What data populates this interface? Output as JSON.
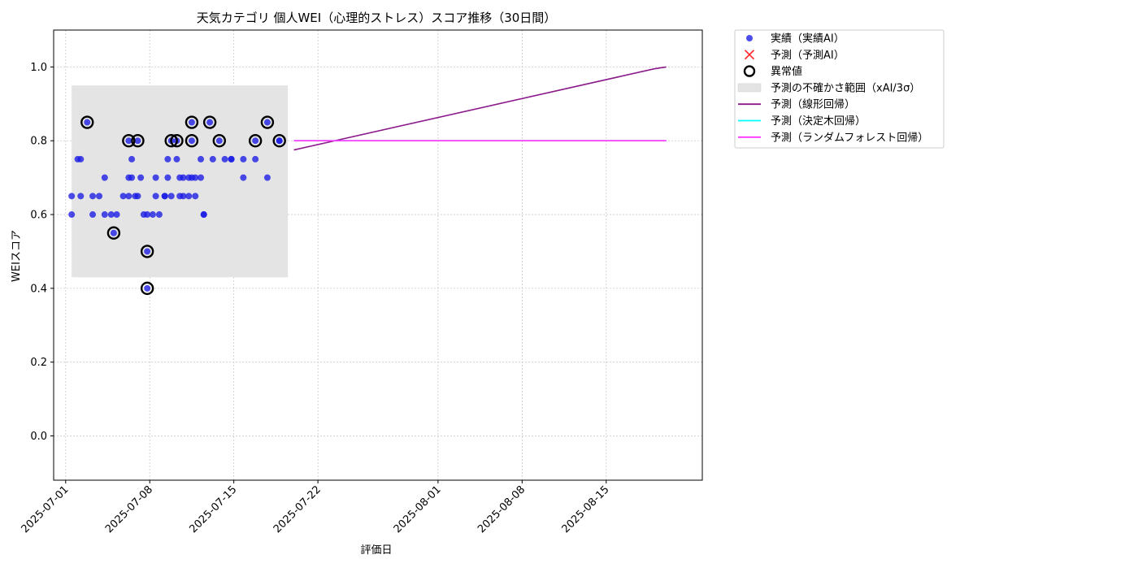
{
  "chart_data": {
    "type": "scatter",
    "title": "天気カテゴリ 個人WEI（心理的ストレス）スコア推移（30日間）",
    "xlabel": "評価日",
    "ylabel": "WEIスコア",
    "x_range": [
      "2025-06-30",
      "2025-08-23"
    ],
    "ylim": [
      -0.12,
      1.1
    ],
    "x_ticks": [
      "2025-07-01",
      "2025-07-08",
      "2025-07-15",
      "2025-07-22",
      "2025-08-01",
      "2025-08-08",
      "2025-08-15"
    ],
    "y_ticks": [
      "0.0",
      "0.2",
      "0.4",
      "0.6",
      "0.8",
      "1.0"
    ],
    "grid": true,
    "legend_position": "outside-right",
    "uncertainty_band": {
      "label": "予測の不確かさ範囲（xAI/3σ）",
      "x_start": "2025-07-01 12:00",
      "x_end": "2025-07-19 12:00",
      "y_low": 0.43,
      "y_high": 0.95,
      "color": "#e4e4e4"
    },
    "actual": {
      "label": "実績（実績AI）",
      "color": "#1a1ae6",
      "points": [
        [
          "2025-07-01 12:00",
          0.65
        ],
        [
          "2025-07-01 12:00",
          0.6
        ],
        [
          "2025-07-02 00:00",
          0.75
        ],
        [
          "2025-07-02 06:00",
          0.75
        ],
        [
          "2025-07-02 06:00",
          0.65
        ],
        [
          "2025-07-02 19:00",
          0.85
        ],
        [
          "2025-07-03 06:00",
          0.6
        ],
        [
          "2025-07-03 06:00",
          0.65
        ],
        [
          "2025-07-03 19:00",
          0.65
        ],
        [
          "2025-07-04 06:00",
          0.7
        ],
        [
          "2025-07-04 06:00",
          0.6
        ],
        [
          "2025-07-04 19:00",
          0.6
        ],
        [
          "2025-07-05 06:00",
          0.6
        ],
        [
          "2025-07-05 00:00",
          0.55
        ],
        [
          "2025-07-05 19:00",
          0.65
        ],
        [
          "2025-07-06 06:00",
          0.7
        ],
        [
          "2025-07-06 06:00",
          0.65
        ],
        [
          "2025-07-06 12:00",
          0.7
        ],
        [
          "2025-07-06 12:00",
          0.75
        ],
        [
          "2025-07-06 06:00",
          0.8
        ],
        [
          "2025-07-06 19:00",
          0.65
        ],
        [
          "2025-07-07 00:00",
          0.65
        ],
        [
          "2025-07-07 06:00",
          0.7
        ],
        [
          "2025-07-07 00:00",
          0.8
        ],
        [
          "2025-07-07 12:00",
          0.6
        ],
        [
          "2025-07-07 19:00",
          0.6
        ],
        [
          "2025-07-07 19:00",
          0.5
        ],
        [
          "2025-07-07 19:00",
          0.4
        ],
        [
          "2025-07-08 06:00",
          0.6
        ],
        [
          "2025-07-08 12:00",
          0.65
        ],
        [
          "2025-07-08 12:00",
          0.7
        ],
        [
          "2025-07-08 19:00",
          0.6
        ],
        [
          "2025-07-09 06:00",
          0.65
        ],
        [
          "2025-07-09 06:00",
          0.65
        ],
        [
          "2025-07-09 12:00",
          0.7
        ],
        [
          "2025-07-09 12:00",
          0.75
        ],
        [
          "2025-07-09 19:00",
          0.8
        ],
        [
          "2025-07-09 19:00",
          0.65
        ],
        [
          "2025-07-10 06:00",
          0.8
        ],
        [
          "2025-07-10 06:00",
          0.75
        ],
        [
          "2025-07-10 12:00",
          0.7
        ],
        [
          "2025-07-10 12:00",
          0.65
        ],
        [
          "2025-07-10 19:00",
          0.7
        ],
        [
          "2025-07-10 19:00",
          0.65
        ],
        [
          "2025-07-11 06:00",
          0.7
        ],
        [
          "2025-07-11 06:00",
          0.65
        ],
        [
          "2025-07-11 12:00",
          0.7
        ],
        [
          "2025-07-11 12:00",
          0.85
        ],
        [
          "2025-07-11 12:00",
          0.8
        ],
        [
          "2025-07-11 19:00",
          0.7
        ],
        [
          "2025-07-11 19:00",
          0.65
        ],
        [
          "2025-07-12 06:00",
          0.7
        ],
        [
          "2025-07-12 06:00",
          0.75
        ],
        [
          "2025-07-12 12:00",
          0.6
        ],
        [
          "2025-07-12 12:00",
          0.6
        ],
        [
          "2025-07-13 06:00",
          0.75
        ],
        [
          "2025-07-13 00:00",
          0.85
        ],
        [
          "2025-07-13 19:00",
          0.8
        ],
        [
          "2025-07-14 06:00",
          0.75
        ],
        [
          "2025-07-14 19:00",
          0.75
        ],
        [
          "2025-07-14 19:00",
          0.75
        ],
        [
          "2025-07-15 19:00",
          0.7
        ],
        [
          "2025-07-15 19:00",
          0.75
        ],
        [
          "2025-07-16 19:00",
          0.8
        ],
        [
          "2025-07-16 19:00",
          0.75
        ],
        [
          "2025-07-17 19:00",
          0.85
        ],
        [
          "2025-07-17 19:00",
          0.7
        ],
        [
          "2025-07-18 19:00",
          0.8
        ],
        [
          "2025-07-18 19:00",
          0.8
        ]
      ]
    },
    "anomalies": {
      "label": "異常値",
      "points": [
        [
          "2025-07-02 19:00",
          0.85
        ],
        [
          "2025-07-05 00:00",
          0.55
        ],
        [
          "2025-07-06 06:00",
          0.8
        ],
        [
          "2025-07-07 00:00",
          0.8
        ],
        [
          "2025-07-07 19:00",
          0.5
        ],
        [
          "2025-07-07 19:00",
          0.4
        ],
        [
          "2025-07-09 19:00",
          0.8
        ],
        [
          "2025-07-10 06:00",
          0.8
        ],
        [
          "2025-07-11 12:00",
          0.85
        ],
        [
          "2025-07-11 12:00",
          0.8
        ],
        [
          "2025-07-13 00:00",
          0.85
        ],
        [
          "2025-07-13 19:00",
          0.8
        ],
        [
          "2025-07-16 19:00",
          0.8
        ],
        [
          "2025-07-17 19:00",
          0.85
        ],
        [
          "2025-07-18 19:00",
          0.8
        ]
      ]
    },
    "predicted_ai": {
      "label": "予測（予測AI）",
      "color": "#ff3333",
      "points": []
    },
    "series": [
      {
        "name": "予測（線形回帰）",
        "color": "#8b1a8b",
        "x": [
          "2025-07-20",
          "2025-08-19",
          "2025-08-20"
        ],
        "y": [
          0.775,
          0.995,
          1.0
        ]
      },
      {
        "name": "予測（決定木回帰）",
        "color": "#00ffff",
        "x": [
          "2025-07-20",
          "2025-08-20"
        ],
        "y": [
          0.8,
          0.8
        ]
      },
      {
        "name": "予測（ランダムフォレスト回帰）",
        "color": "#ff33ff",
        "x": [
          "2025-07-20",
          "2025-08-20"
        ],
        "y": [
          0.8,
          0.8
        ]
      }
    ]
  }
}
